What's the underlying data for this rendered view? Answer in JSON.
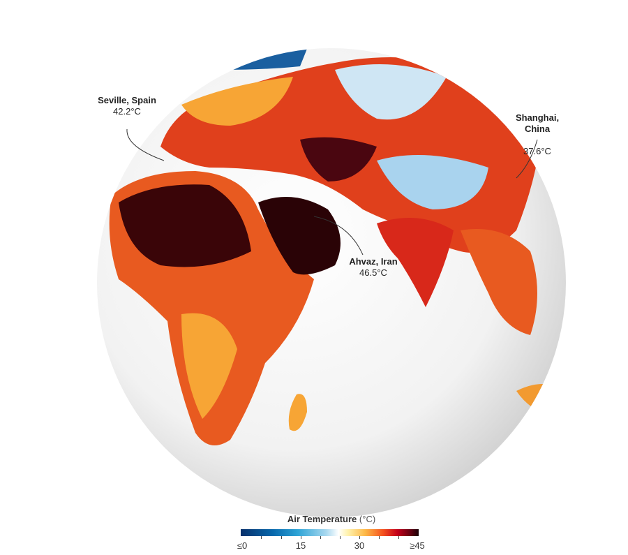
{
  "annotations": [
    {
      "city": "Seville, Spain",
      "temp": "42.2°C"
    },
    {
      "city": "Shanghai,\nChina",
      "temp": "37.6°C"
    },
    {
      "city": "Ahvaz, Iran",
      "temp": "46.5°C"
    }
  ],
  "legend": {
    "title": "Air Temperature",
    "unit": "(°C)",
    "ticks": [
      "≤0",
      "15",
      "30",
      "≥45"
    ],
    "colors": [
      "#08306b",
      "#2ea4d6",
      "#ffffff",
      "#fdb846",
      "#f4511e",
      "#c4001a",
      "#1a0005"
    ]
  }
}
